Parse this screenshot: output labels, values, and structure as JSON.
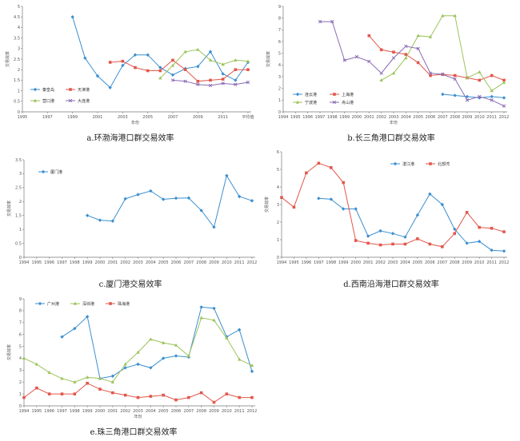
{
  "chart_data": [
    {
      "type": "line",
      "caption": "a.环渤海港口群交易效率",
      "xlabel": "年份",
      "ylabel": "交易效率",
      "x_type": "year",
      "xlim": [
        1995,
        2013
      ],
      "ylim": [
        0,
        5
      ],
      "y_ticks": [
        0,
        0.5,
        1.0,
        1.5,
        2.0,
        2.5,
        3.0,
        3.5,
        4.0,
        4.5,
        5.0
      ],
      "x_tick_labels": [
        {
          "x": 1995,
          "label": "1995"
        },
        {
          "x": 1997,
          "label": "1997"
        },
        {
          "x": 1999,
          "label": "1999"
        },
        {
          "x": 2001,
          "label": "2001"
        },
        {
          "x": 2003,
          "label": "2003"
        },
        {
          "x": 2005,
          "label": "2005"
        },
        {
          "x": 2007,
          "label": "2007"
        },
        {
          "x": 2009,
          "label": "2009"
        },
        {
          "x": 2011,
          "label": "2011"
        },
        {
          "x": 2013,
          "label": "平均值"
        }
      ],
      "legend_cols": 2,
      "series": [
        {
          "name": "秦皇岛",
          "color": "#3b8fd0",
          "marker": "diamond",
          "x": [
            1999,
            2000,
            2001,
            2002,
            2003,
            2004,
            2005,
            2006,
            2007,
            2008,
            2009,
            2010,
            2011,
            2012,
            2013
          ],
          "y": [
            4.5,
            2.55,
            1.7,
            1.15,
            2.2,
            2.7,
            2.7,
            2.1,
            1.75,
            2.05,
            2.15,
            2.85,
            1.8,
            1.5,
            2.35
          ]
        },
        {
          "name": "天津港",
          "color": "#e2574c",
          "marker": "square",
          "x": [
            2002,
            2003,
            2004,
            2005,
            2006,
            2007,
            2008,
            2009,
            2010,
            2011,
            2012,
            2013
          ],
          "y": [
            2.35,
            2.4,
            2.1,
            1.95,
            1.95,
            2.45,
            2.0,
            1.45,
            1.5,
            1.55,
            2.0,
            2.0
          ]
        },
        {
          "name": "营口港",
          "color": "#9cc35a",
          "marker": "triangle",
          "x": [
            2006,
            2007,
            2008,
            2009,
            2010,
            2011,
            2012,
            2013
          ],
          "y": [
            1.6,
            2.2,
            2.85,
            2.95,
            2.45,
            2.25,
            2.45,
            2.4
          ]
        },
        {
          "name": "大连港",
          "color": "#8a6bb5",
          "marker": "x",
          "x": [
            2007,
            2008,
            2009,
            2010,
            2011,
            2012,
            2013
          ],
          "y": [
            1.5,
            1.45,
            1.3,
            1.25,
            1.35,
            1.3,
            1.4
          ]
        }
      ]
    },
    {
      "type": "line",
      "caption": "b.长三角港口群交易效率",
      "xlabel": "年份",
      "ylabel": "交易效率",
      "x_type": "year",
      "xlim": [
        1994,
        2012
      ],
      "ylim": [
        0,
        9
      ],
      "y_ticks": [
        0,
        1,
        2,
        3,
        4,
        5,
        6,
        7,
        8,
        9
      ],
      "x_tick_labels": [
        {
          "x": 1994,
          "label": "1994"
        },
        {
          "x": 1995,
          "label": "1995"
        },
        {
          "x": 1996,
          "label": "1996"
        },
        {
          "x": 1997,
          "label": "1997"
        },
        {
          "x": 1998,
          "label": "1998"
        },
        {
          "x": 1999,
          "label": "1999"
        },
        {
          "x": 2000,
          "label": "2000"
        },
        {
          "x": 2001,
          "label": "2001"
        },
        {
          "x": 2002,
          "label": "2002"
        },
        {
          "x": 2003,
          "label": "2003"
        },
        {
          "x": 2004,
          "label": "2004"
        },
        {
          "x": 2005,
          "label": "2005"
        },
        {
          "x": 2006,
          "label": "2006"
        },
        {
          "x": 2007,
          "label": "2007"
        },
        {
          "x": 2008,
          "label": "2008"
        },
        {
          "x": 2009,
          "label": "2009"
        },
        {
          "x": 2010,
          "label": "2010"
        },
        {
          "x": 2011,
          "label": "2011"
        },
        {
          "x": 2012,
          "label": "2012"
        }
      ],
      "legend_cols": 2,
      "series": [
        {
          "name": "连云港",
          "color": "#3b8fd0",
          "marker": "diamond",
          "x": [
            2007,
            2008,
            2009,
            2010,
            2011,
            2012
          ],
          "y": [
            1.5,
            1.4,
            1.3,
            1.2,
            1.3,
            1.2
          ]
        },
        {
          "name": "上海港",
          "color": "#e2574c",
          "marker": "square",
          "x": [
            2001,
            2002,
            2003,
            2004,
            2005,
            2006,
            2007,
            2008,
            2009,
            2010,
            2011,
            2012
          ],
          "y": [
            6.5,
            5.3,
            5.1,
            4.9,
            4.2,
            3.1,
            3.2,
            3.1,
            2.9,
            2.7,
            3.1,
            2.7
          ]
        },
        {
          "name": "宁波港",
          "color": "#9cc35a",
          "marker": "triangle",
          "x": [
            2002,
            2003,
            2004,
            2005,
            2006,
            2007,
            2008,
            2009,
            2010,
            2011,
            2012
          ],
          "y": [
            2.7,
            3.3,
            4.6,
            6.5,
            6.4,
            8.2,
            8.2,
            2.9,
            3.4,
            1.8,
            2.5
          ]
        },
        {
          "name": "舟山港",
          "color": "#8a6bb5",
          "marker": "x",
          "x": [
            1997,
            1998,
            1999,
            2000,
            2001,
            2002,
            2003,
            2004,
            2005,
            2006,
            2007,
            2008,
            2009,
            2010,
            2011,
            2012
          ],
          "y": [
            7.7,
            7.7,
            4.4,
            4.7,
            4.3,
            3.3,
            4.6,
            5.6,
            5.4,
            3.3,
            3.2,
            2.8,
            1.0,
            1.3,
            1.0,
            0.5
          ]
        }
      ]
    },
    {
      "type": "line",
      "caption": "c.厦门港交易效率",
      "xlabel": "",
      "ylabel": "交易效率",
      "x_type": "year",
      "xlim": [
        1994,
        2012
      ],
      "ylim": [
        0,
        3.5
      ],
      "y_ticks": [
        0,
        0.5,
        1.0,
        1.5,
        2.0,
        2.5,
        3.0,
        3.5
      ],
      "x_tick_labels": [
        {
          "x": 1994,
          "label": "1994"
        },
        {
          "x": 1995,
          "label": "1995"
        },
        {
          "x": 1996,
          "label": "1996"
        },
        {
          "x": 1997,
          "label": "1997"
        },
        {
          "x": 1998,
          "label": "1998"
        },
        {
          "x": 1999,
          "label": "1999"
        },
        {
          "x": 2000,
          "label": "2000"
        },
        {
          "x": 2001,
          "label": "2001"
        },
        {
          "x": 2002,
          "label": "2002"
        },
        {
          "x": 2003,
          "label": "2003"
        },
        {
          "x": 2004,
          "label": "2004"
        },
        {
          "x": 2005,
          "label": "2005"
        },
        {
          "x": 2006,
          "label": "2006"
        },
        {
          "x": 2007,
          "label": "2007"
        },
        {
          "x": 2008,
          "label": "2008"
        },
        {
          "x": 2009,
          "label": "2009"
        },
        {
          "x": 2010,
          "label": "2010"
        },
        {
          "x": 2011,
          "label": "2011"
        },
        {
          "x": 2012,
          "label": "2012"
        }
      ],
      "legend_cols": 1,
      "series": [
        {
          "name": "厦门港",
          "color": "#3b8fd0",
          "marker": "diamond",
          "x": [
            1999,
            2000,
            2001,
            2002,
            2003,
            2004,
            2005,
            2006,
            2007,
            2008,
            2009,
            2010,
            2011,
            2012
          ],
          "y": [
            1.5,
            1.33,
            1.3,
            2.1,
            2.25,
            2.38,
            2.08,
            2.12,
            2.13,
            1.68,
            1.08,
            2.93,
            2.18,
            2.03
          ]
        }
      ]
    },
    {
      "type": "line",
      "caption": "d.西南沿海港口群交易效率",
      "xlabel": "",
      "ylabel": "交易效率",
      "x_type": "year",
      "xlim": [
        1994,
        2012
      ],
      "ylim": [
        0,
        6
      ],
      "y_ticks": [
        0,
        1,
        2,
        3,
        4,
        5,
        6
      ],
      "x_tick_labels": [
        {
          "x": 1994,
          "label": "1994"
        },
        {
          "x": 1995,
          "label": "1995"
        },
        {
          "x": 1996,
          "label": "1996"
        },
        {
          "x": 1997,
          "label": "1997"
        },
        {
          "x": 1998,
          "label": "1998"
        },
        {
          "x": 1999,
          "label": "1999"
        },
        {
          "x": 2000,
          "label": "2000"
        },
        {
          "x": 2001,
          "label": "2001"
        },
        {
          "x": 2002,
          "label": "2002"
        },
        {
          "x": 2003,
          "label": "2003"
        },
        {
          "x": 2004,
          "label": "2004"
        },
        {
          "x": 2005,
          "label": "2005"
        },
        {
          "x": 2006,
          "label": "2006"
        },
        {
          "x": 2007,
          "label": "2007"
        },
        {
          "x": 2008,
          "label": "2008"
        },
        {
          "x": 2009,
          "label": "2009"
        },
        {
          "x": 2010,
          "label": "2010"
        },
        {
          "x": 2011,
          "label": "2011"
        },
        {
          "x": 2012,
          "label": "2012"
        }
      ],
      "legend_cols": 2,
      "series": [
        {
          "name": "湛江港",
          "color": "#3b8fd0",
          "marker": "diamond",
          "x": [
            1997,
            1998,
            1999,
            2000,
            2001,
            2002,
            2003,
            2004,
            2005,
            2006,
            2007,
            2008,
            2009,
            2010,
            2011,
            2012
          ],
          "y": [
            3.35,
            3.3,
            2.75,
            2.75,
            1.2,
            1.5,
            1.35,
            1.15,
            2.4,
            3.6,
            3.0,
            1.6,
            0.8,
            0.9,
            0.4,
            0.35
          ]
        },
        {
          "name": "北部湾",
          "color": "#e2574c",
          "marker": "square",
          "x": [
            1994,
            1995,
            1996,
            1997,
            1998,
            1999,
            2000,
            2001,
            2002,
            2003,
            2004,
            2005,
            2006,
            2007,
            2008,
            2009,
            2010,
            2011,
            2012
          ],
          "y": [
            3.4,
            2.85,
            4.8,
            5.35,
            5.1,
            4.25,
            0.95,
            0.8,
            0.7,
            0.75,
            0.75,
            1.05,
            0.75,
            0.6,
            1.35,
            2.55,
            1.7,
            1.65,
            1.45
          ]
        }
      ]
    },
    {
      "type": "line",
      "caption": "e.珠三角港口群交易效率",
      "xlabel": "年份",
      "ylabel": "交易效率",
      "x_type": "year",
      "xlim": [
        1994,
        2012
      ],
      "ylim": [
        0,
        9
      ],
      "y_ticks": [
        0,
        1,
        2,
        3,
        4,
        5,
        6,
        7,
        8,
        9
      ],
      "x_tick_labels": [
        {
          "x": 1994,
          "label": "1994"
        },
        {
          "x": 1995,
          "label": "1995"
        },
        {
          "x": 1996,
          "label": "1996"
        },
        {
          "x": 1997,
          "label": "1997"
        },
        {
          "x": 1998,
          "label": "1998"
        },
        {
          "x": 1999,
          "label": "1999"
        },
        {
          "x": 2000,
          "label": "2000"
        },
        {
          "x": 2001,
          "label": "2001"
        },
        {
          "x": 2002,
          "label": "2002"
        },
        {
          "x": 2003,
          "label": "2003"
        },
        {
          "x": 2004,
          "label": "2004"
        },
        {
          "x": 2005,
          "label": "2005"
        },
        {
          "x": 2006,
          "label": "2006"
        },
        {
          "x": 2007,
          "label": "2007"
        },
        {
          "x": 2008,
          "label": "2008"
        },
        {
          "x": 2009,
          "label": "2009"
        },
        {
          "x": 2010,
          "label": "2010"
        },
        {
          "x": 2011,
          "label": "2011"
        },
        {
          "x": 2012,
          "label": "2012"
        }
      ],
      "legend_cols": 3,
      "series": [
        {
          "name": "广州港",
          "color": "#3b8fd0",
          "marker": "diamond",
          "x": [
            1997,
            1998,
            1999,
            2000,
            2001,
            2002,
            2003,
            2004,
            2005,
            2006,
            2007,
            2008,
            2009,
            2010,
            2011,
            2012
          ],
          "y": [
            5.8,
            6.5,
            7.5,
            2.3,
            2.5,
            3.2,
            3.5,
            3.2,
            4.0,
            4.2,
            4.1,
            8.3,
            8.2,
            5.8,
            6.4,
            2.9
          ]
        },
        {
          "name": "深圳港",
          "color": "#9cc35a",
          "marker": "triangle",
          "x": [
            1994,
            1995,
            1996,
            1997,
            1998,
            1999,
            2000,
            2001,
            2002,
            2003,
            2004,
            2005,
            2006,
            2007,
            2008,
            2009,
            2010,
            2011,
            2012
          ],
          "y": [
            4.0,
            3.5,
            2.8,
            2.3,
            2.0,
            2.4,
            2.3,
            2.0,
            3.5,
            4.5,
            5.6,
            5.3,
            5.1,
            4.2,
            7.4,
            7.2,
            5.7,
            3.9,
            3.4
          ]
        },
        {
          "name": "珠海港",
          "color": "#e2574c",
          "marker": "square",
          "x": [
            1994,
            1995,
            1996,
            1997,
            1998,
            1999,
            2000,
            2001,
            2002,
            2003,
            2004,
            2005,
            2006,
            2007,
            2008,
            2009,
            2010,
            2011,
            2012
          ],
          "y": [
            0.7,
            1.5,
            1.0,
            1.0,
            1.0,
            1.9,
            1.4,
            1.1,
            0.9,
            0.7,
            0.8,
            0.9,
            0.5,
            0.7,
            1.1,
            0.3,
            1.0,
            0.7,
            0.7
          ]
        }
      ]
    }
  ]
}
